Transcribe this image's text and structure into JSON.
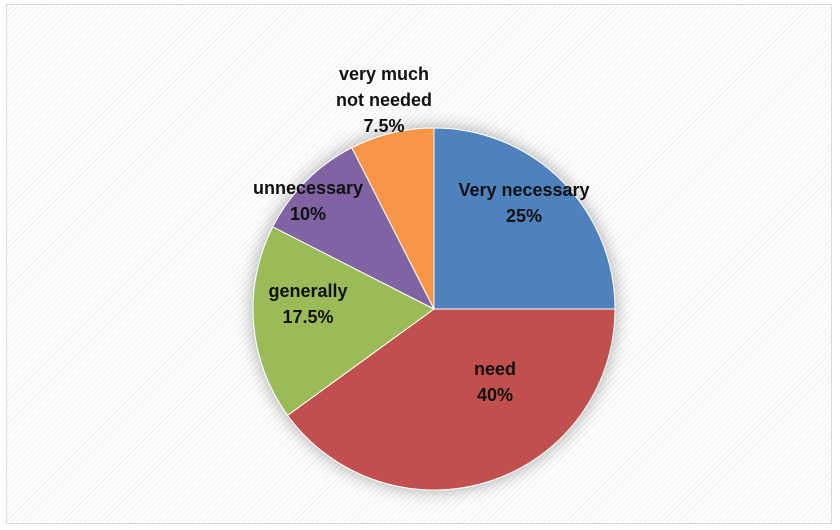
{
  "chart_data": {
    "type": "pie",
    "start_angle": "12 o'clock",
    "direction": "clockwise",
    "legend": "none",
    "slices": [
      {
        "label": [
          "Very necessary"
        ],
        "percent_label": "25%",
        "value": 25,
        "color": "#4f81bd"
      },
      {
        "label": [
          "need"
        ],
        "percent_label": "40%",
        "value": 40,
        "color": "#c0504d"
      },
      {
        "label": [
          "generally"
        ],
        "percent_label": "17.5%",
        "value": 17.5,
        "color": "#9bbb59"
      },
      {
        "label": [
          "unnecessary"
        ],
        "percent_label": "10%",
        "value": 10,
        "color": "#8064a2"
      },
      {
        "label": [
          "very much",
          "not needed"
        ],
        "percent_label": "7.5%",
        "value": 7.5,
        "color": "#f79646"
      }
    ]
  }
}
